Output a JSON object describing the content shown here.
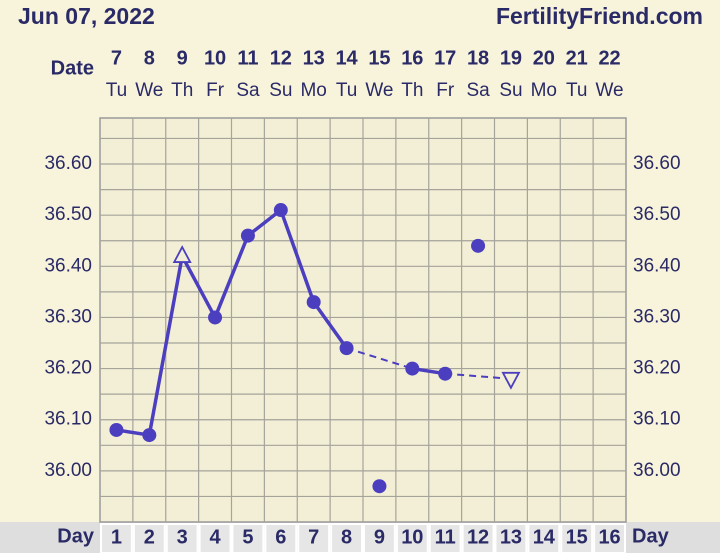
{
  "header": {
    "date": "Jun 07, 2022",
    "site": "FertilityFriend.com"
  },
  "chart_data": {
    "type": "line",
    "date_label": "Date",
    "day_label": "Day",
    "categories": [
      1,
      2,
      3,
      4,
      5,
      6,
      7,
      8,
      9,
      10,
      11,
      12,
      13,
      14,
      15,
      16
    ],
    "dates": [
      7,
      8,
      9,
      10,
      11,
      12,
      13,
      14,
      15,
      16,
      17,
      18,
      19,
      20,
      21,
      22
    ],
    "weekdays": [
      "Tu",
      "We",
      "Th",
      "Fr",
      "Sa",
      "Su",
      "Mo",
      "Tu",
      "We",
      "Th",
      "Fr",
      "Sa",
      "Su",
      "Mo",
      "Tu",
      "We"
    ],
    "values": [
      36.08,
      36.07,
      36.42,
      36.3,
      36.46,
      36.51,
      36.33,
      36.24,
      35.97,
      36.2,
      36.19,
      36.44,
      36.18,
      null,
      null,
      null
    ],
    "markers": [
      "dot",
      "dot",
      "open-triangle-up",
      "dot",
      "dot",
      "dot",
      "dot",
      "dot",
      "dot",
      "dot",
      "dot",
      "dot",
      "open-triangle-down",
      null,
      null,
      null
    ],
    "connected": [
      true,
      true,
      true,
      true,
      true,
      true,
      true,
      true,
      false,
      true,
      true,
      false,
      true,
      null,
      null,
      null
    ],
    "color": "#4b3fbf",
    "ylim": [
      35.9,
      36.69
    ],
    "yticks": [
      {
        "value": 36.0,
        "label": "36.00"
      },
      {
        "value": 36.1,
        "label": "36.10"
      },
      {
        "value": 36.2,
        "label": "36.20"
      },
      {
        "value": 36.3,
        "label": "36.30"
      },
      {
        "value": 36.4,
        "label": "36.40"
      },
      {
        "value": 36.5,
        "label": "36.50"
      },
      {
        "value": 36.6,
        "label": "36.60"
      }
    ],
    "minor_yticks": [
      35.95,
      36.05,
      36.15,
      36.25,
      36.35,
      36.45,
      36.55,
      36.65
    ],
    "grid": true
  }
}
